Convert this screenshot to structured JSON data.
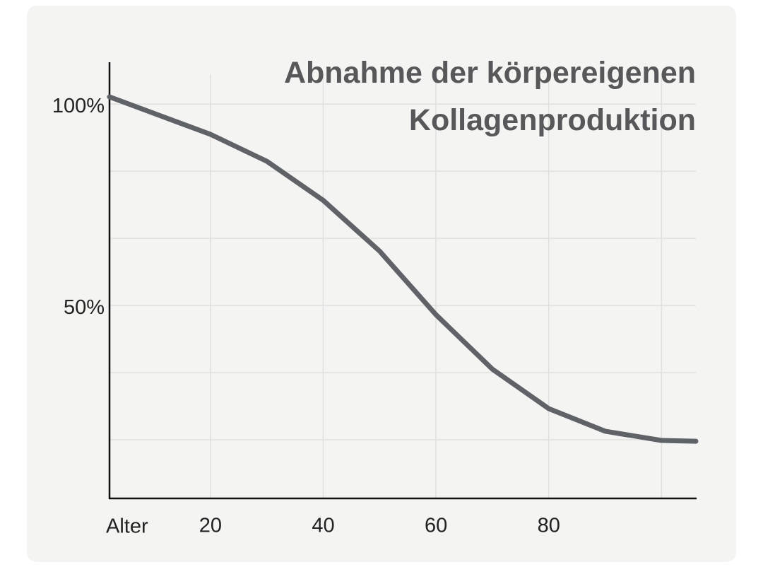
{
  "chart_data": {
    "type": "line",
    "title": "Abnahme der körpereigenen Kollagenproduktion",
    "x_label": "Alter",
    "x": [
      2.1,
      10,
      20,
      30,
      40,
      50,
      60,
      70,
      80,
      90,
      100,
      106.1
    ],
    "series": [
      {
        "color": "#5f6266",
        "values": [
          101.8,
          97.7,
          92.5,
          85.8,
          76.1,
          63.5,
          47.7,
          34.2,
          24.4,
          18.8,
          16.5,
          16.3
        ]
      }
    ],
    "xlim": [
      2.1,
      106.1
    ],
    "xticks": [
      20,
      40,
      60,
      80
    ],
    "xgrid": [
      20,
      40,
      60,
      80,
      100
    ],
    "ylim": [
      2.1,
      110.4
    ],
    "yticks": [
      {
        "value": 100,
        "label": "100%"
      },
      {
        "value": 50,
        "label": "50%"
      }
    ],
    "ygrid": [
      16.67,
      33.33,
      50,
      66.67,
      83.33,
      100
    ],
    "grid": true
  }
}
